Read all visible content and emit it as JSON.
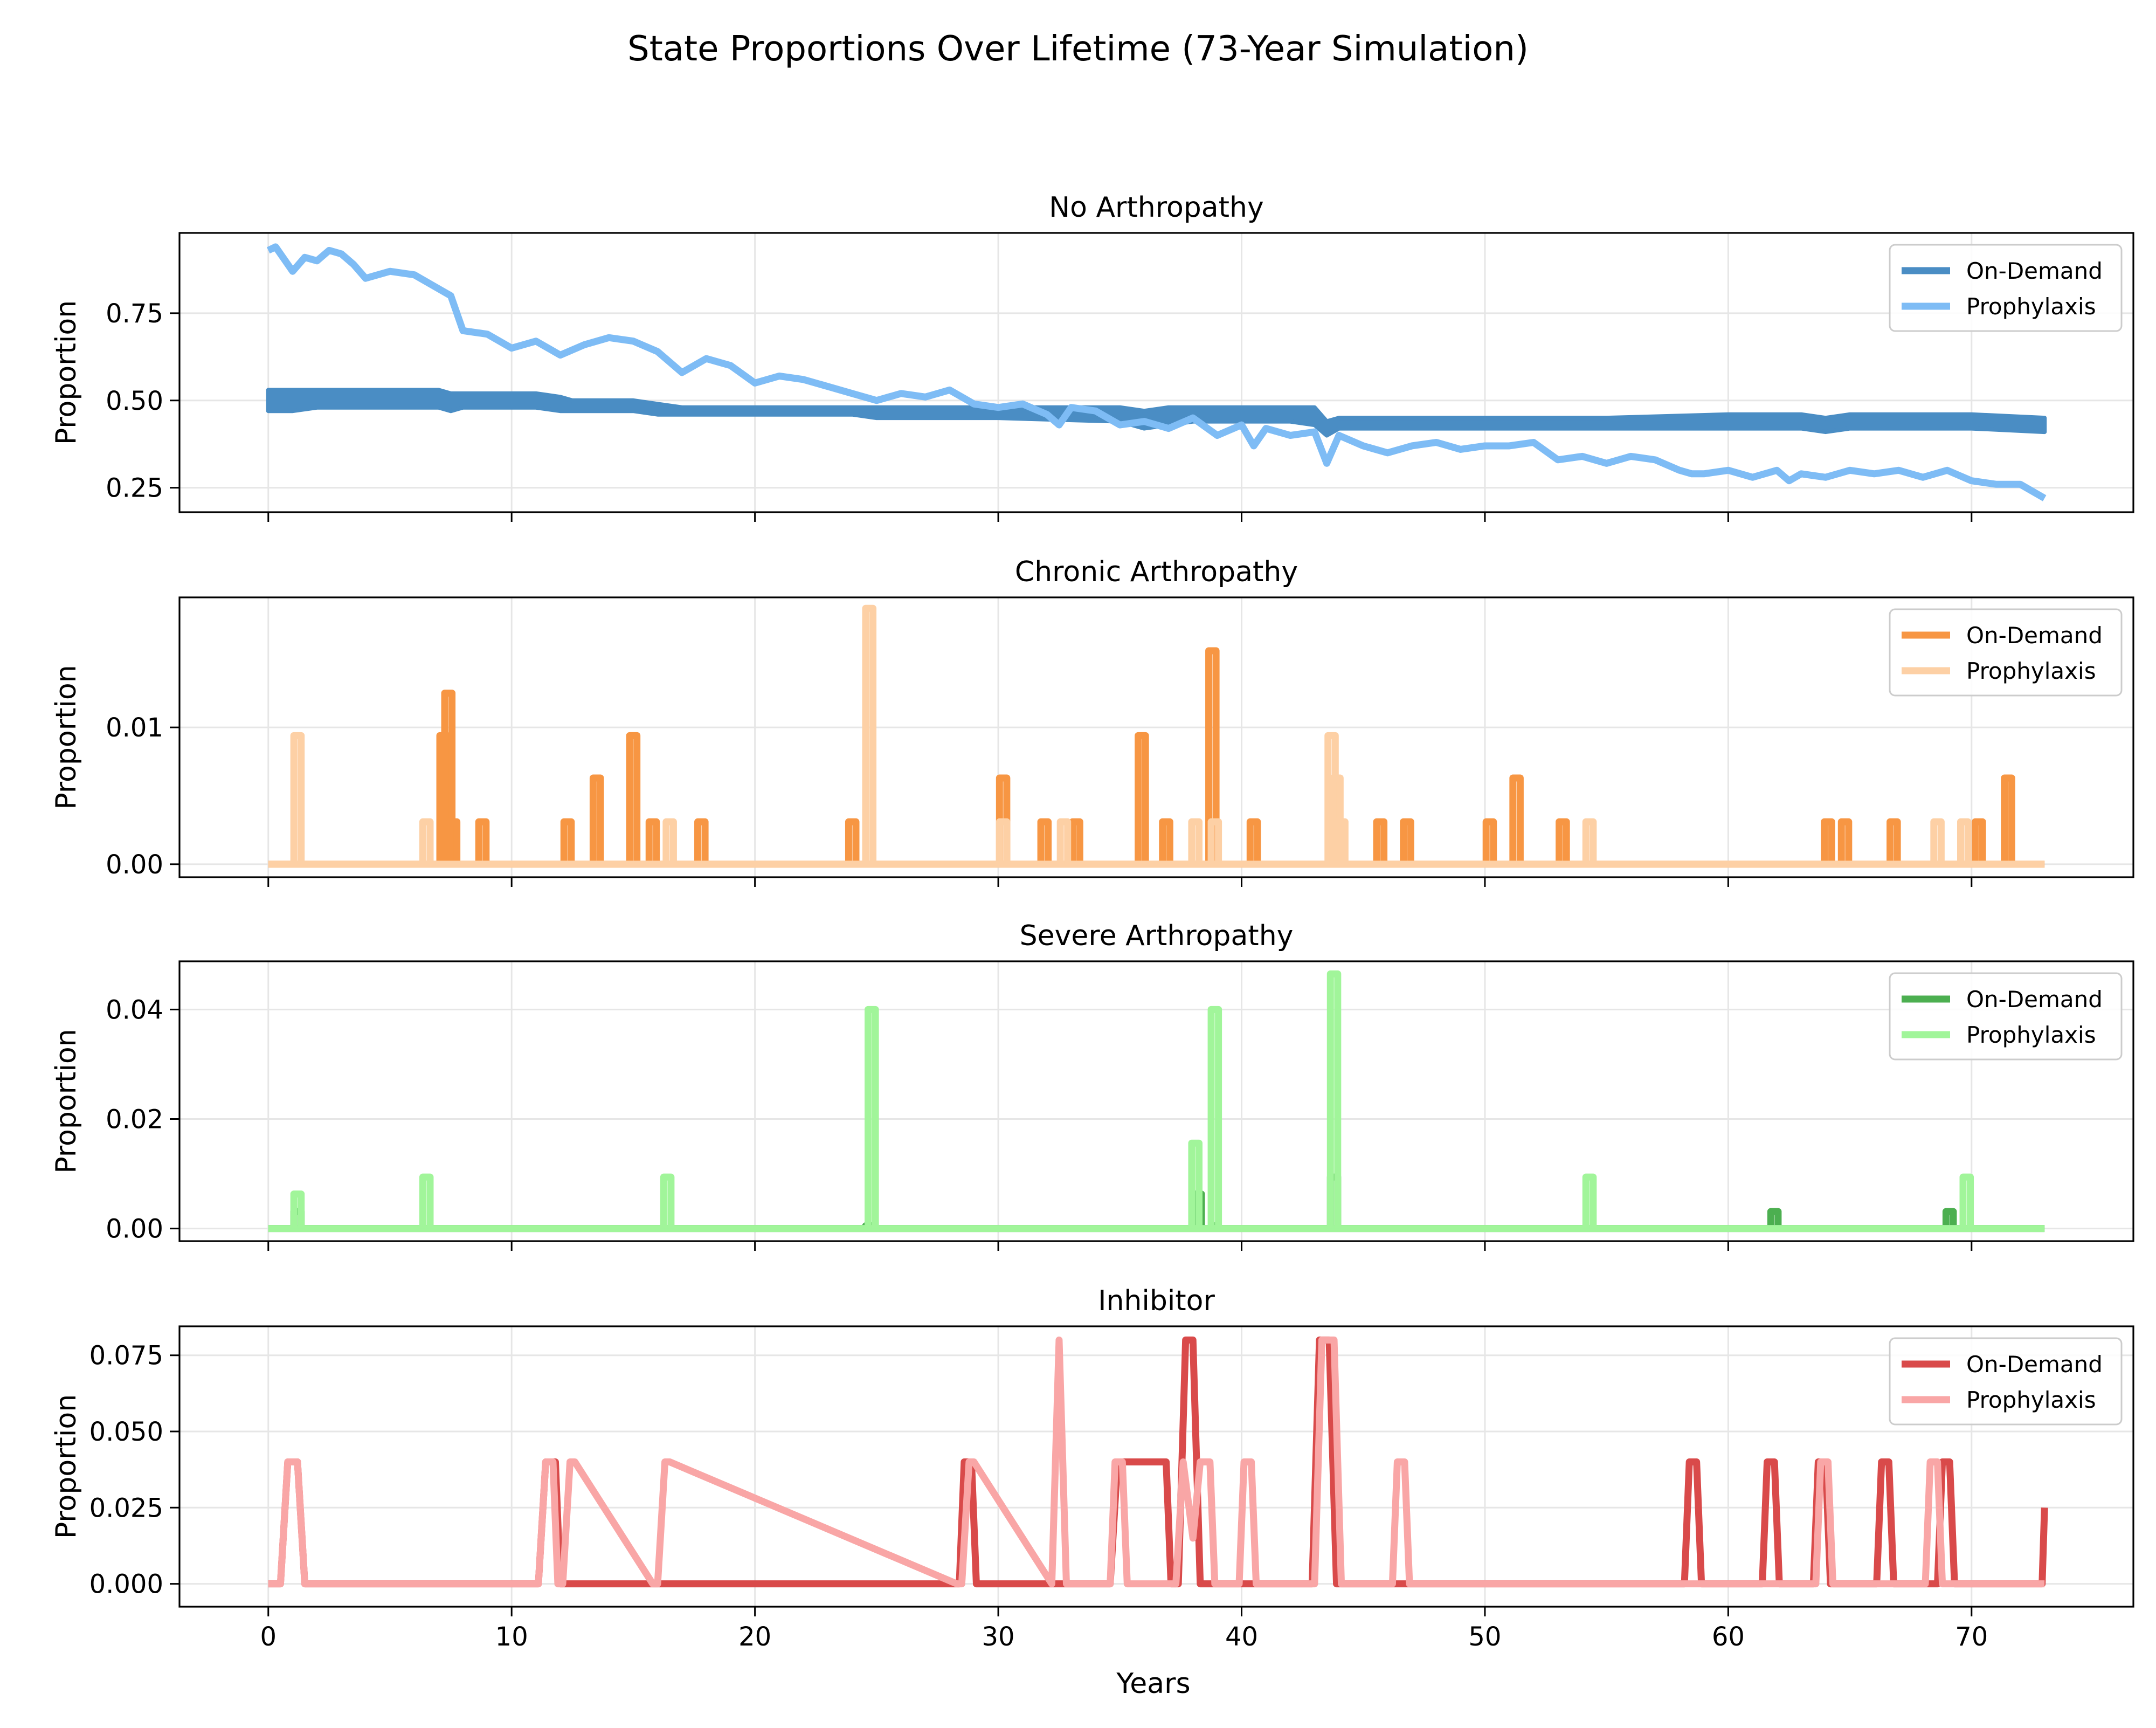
{
  "figure": {
    "title": "State Proportions Over Lifetime (73-Year Simulation)"
  },
  "shared_x": {
    "label": "Years",
    "range": [
      -3.65,
      76.65
    ],
    "ticks": [
      0,
      10,
      20,
      30,
      40,
      50,
      60,
      70
    ],
    "tick_labels": [
      "0",
      "10",
      "20",
      "30",
      "40",
      "50",
      "60",
      "70"
    ]
  },
  "chart_data": [
    {
      "type": "line",
      "title": "No Arthropathy",
      "ylabel": "Proportion",
      "ylim": [
        0.18,
        0.98
      ],
      "yticks": [
        0.25,
        0.5,
        0.75
      ],
      "ytick_labels": [
        "0.25",
        "0.50",
        "0.75"
      ],
      "grid": true,
      "legend": "top-right",
      "series": [
        {
          "name": "On-Demand",
          "color": "#4a8dc4",
          "band": true,
          "x": [
            0,
            1,
            2,
            4,
            6,
            7,
            7.5,
            8,
            11,
            12,
            12.5,
            15,
            16,
            17,
            20,
            24,
            25,
            30,
            35,
            36,
            37,
            38,
            39,
            42,
            43,
            43.5,
            44,
            45,
            46,
            50,
            55,
            60,
            63,
            64,
            65,
            70,
            73
          ],
          "low": [
            0.47,
            0.47,
            0.48,
            0.48,
            0.48,
            0.48,
            0.47,
            0.48,
            0.48,
            0.47,
            0.47,
            0.47,
            0.46,
            0.46,
            0.46,
            0.46,
            0.45,
            0.45,
            0.44,
            0.42,
            0.43,
            0.44,
            0.44,
            0.44,
            0.43,
            0.4,
            0.42,
            0.42,
            0.42,
            0.42,
            0.42,
            0.42,
            0.42,
            0.41,
            0.42,
            0.42,
            0.41
          ],
          "high": [
            0.53,
            0.53,
            0.53,
            0.53,
            0.53,
            0.53,
            0.52,
            0.52,
            0.52,
            0.51,
            0.5,
            0.5,
            0.49,
            0.48,
            0.48,
            0.48,
            0.48,
            0.48,
            0.48,
            0.47,
            0.48,
            0.48,
            0.48,
            0.48,
            0.48,
            0.44,
            0.45,
            0.45,
            0.45,
            0.45,
            0.45,
            0.46,
            0.46,
            0.45,
            0.46,
            0.46,
            0.45
          ]
        },
        {
          "name": "Prophylaxis",
          "color": "#7ebcf5",
          "x": [
            0,
            0.3,
            0.6,
            1,
            1.5,
            2,
            2.5,
            3,
            3.5,
            4,
            5,
            6,
            7,
            7.5,
            8,
            9,
            10,
            11,
            12,
            13,
            14,
            15,
            16,
            17,
            18,
            19,
            20,
            21,
            22,
            23,
            24,
            25,
            26,
            27,
            28,
            29,
            30,
            31,
            32,
            32.5,
            33,
            34,
            35,
            36,
            37,
            38,
            39,
            40,
            40.5,
            41,
            42,
            43,
            43.5,
            44,
            45,
            46,
            47,
            48,
            49,
            50,
            51,
            52,
            53,
            54,
            55,
            56,
            57,
            58,
            58.5,
            59,
            60,
            61,
            62,
            62.5,
            63,
            64,
            65,
            66,
            67,
            68,
            69,
            70,
            71,
            72,
            73
          ],
          "y": [
            0.93,
            0.94,
            0.91,
            0.87,
            0.91,
            0.9,
            0.93,
            0.92,
            0.89,
            0.85,
            0.87,
            0.86,
            0.82,
            0.8,
            0.7,
            0.69,
            0.65,
            0.67,
            0.63,
            0.66,
            0.68,
            0.67,
            0.64,
            0.58,
            0.62,
            0.6,
            0.55,
            0.57,
            0.56,
            0.54,
            0.52,
            0.5,
            0.52,
            0.51,
            0.53,
            0.49,
            0.48,
            0.49,
            0.46,
            0.43,
            0.48,
            0.47,
            0.43,
            0.44,
            0.42,
            0.45,
            0.4,
            0.43,
            0.37,
            0.42,
            0.4,
            0.41,
            0.32,
            0.4,
            0.37,
            0.35,
            0.37,
            0.38,
            0.36,
            0.37,
            0.37,
            0.38,
            0.33,
            0.34,
            0.32,
            0.34,
            0.33,
            0.3,
            0.29,
            0.29,
            0.3,
            0.28,
            0.3,
            0.27,
            0.29,
            0.28,
            0.3,
            0.29,
            0.3,
            0.28,
            0.3,
            0.27,
            0.26,
            0.26,
            0.22
          ]
        }
      ]
    },
    {
      "type": "line",
      "title": "Chronic Arthropathy",
      "ylabel": "Proportion",
      "ylim": [
        -0.00095,
        0.0195
      ],
      "yticks": [
        0.0,
        0.01
      ],
      "ytick_labels": [
        "0.00",
        "0.01"
      ],
      "grid": true,
      "legend": "top-right",
      "series": [
        {
          "name": "On-Demand",
          "color": "#f79643",
          "base": 0,
          "spikes": [
            [
              7.2,
              0.0094
            ],
            [
              7.4,
              0.0125
            ],
            [
              7.6,
              0.0031
            ],
            [
              8.8,
              0.0031
            ],
            [
              12.3,
              0.0031
            ],
            [
              13.5,
              0.0063
            ],
            [
              15,
              0.0094
            ],
            [
              15.8,
              0.0031
            ],
            [
              17.8,
              0.0031
            ],
            [
              24,
              0.0031
            ],
            [
              30.2,
              0.0063
            ],
            [
              31.9,
              0.0031
            ],
            [
              33.2,
              0.0031
            ],
            [
              35.9,
              0.0094
            ],
            [
              36.9,
              0.0031
            ],
            [
              38.8,
              0.0156
            ],
            [
              40.5,
              0.0031
            ],
            [
              45.7,
              0.0031
            ],
            [
              46.8,
              0.0031
            ],
            [
              50.2,
              0.0031
            ],
            [
              51.3,
              0.0063
            ],
            [
              53.2,
              0.0031
            ],
            [
              64.1,
              0.0031
            ],
            [
              64.8,
              0.0031
            ],
            [
              66.8,
              0.0031
            ],
            [
              70.3,
              0.0031
            ],
            [
              71.5,
              0.0063
            ]
          ]
        },
        {
          "name": "Prophylaxis",
          "color": "#fdd0a5",
          "base": 0,
          "spikes": [
            [
              1.2,
              0.0094
            ],
            [
              6.5,
              0.0031
            ],
            [
              16.5,
              0.0031
            ],
            [
              24.7,
              0.0187
            ],
            [
              30.2,
              0.0031
            ],
            [
              32.7,
              0.0031
            ],
            [
              38.1,
              0.0031
            ],
            [
              38.9,
              0.0031
            ],
            [
              43.7,
              0.0094
            ],
            [
              43.9,
              0.0063
            ],
            [
              44.1,
              0.0031
            ],
            [
              54.3,
              0.0031
            ],
            [
              68.6,
              0.0031
            ],
            [
              69.7,
              0.0031
            ]
          ]
        }
      ]
    },
    {
      "type": "line",
      "title": "Severe Arthropathy",
      "ylabel": "Proportion",
      "ylim": [
        -0.0023,
        0.0488
      ],
      "yticks": [
        0.0,
        0.02,
        0.04
      ],
      "ytick_labels": [
        "0.00",
        "0.02",
        "0.04"
      ],
      "grid": true,
      "legend": "top-right",
      "series": [
        {
          "name": "On-Demand",
          "color": "#4caf50",
          "base": 0,
          "spikes": [
            [
              1.2,
              0.0031
            ],
            [
              24.7,
              0.0005
            ],
            [
              38.2,
              0.0063
            ],
            [
              38.9,
              0.0005
            ],
            [
              43.8,
              0.0094
            ],
            [
              61.9,
              0.0031
            ],
            [
              69.1,
              0.0031
            ]
          ]
        },
        {
          "name": "Prophylaxis",
          "color": "#a1f59a",
          "base": 0,
          "spikes": [
            [
              1.2,
              0.0063
            ],
            [
              6.5,
              0.0094
            ],
            [
              16.4,
              0.0094
            ],
            [
              24.8,
              0.04
            ],
            [
              38.1,
              0.0156
            ],
            [
              38.9,
              0.04
            ],
            [
              43.8,
              0.0465
            ],
            [
              54.3,
              0.0094
            ],
            [
              69.8,
              0.0094
            ]
          ]
        }
      ]
    },
    {
      "type": "line",
      "title": "Inhibitor",
      "ylabel": "Proportion",
      "ylim": [
        -0.0075,
        0.0845
      ],
      "yticks": [
        0.0,
        0.025,
        0.05,
        0.075
      ],
      "ytick_labels": [
        "0.000",
        "0.025",
        "0.050",
        "0.075"
      ],
      "grid": true,
      "legend": "top-right",
      "series": [
        {
          "name": "On-Demand",
          "color": "#d94a4a",
          "x": [
            0,
            0.5,
            0.8,
            1.2,
            1.5,
            11.1,
            11.4,
            11.8,
            12.0,
            28.4,
            28.6,
            28.9,
            29.1,
            34.6,
            34.9,
            36.9,
            37.1,
            37.4,
            37.7,
            38.0,
            38.3,
            42.9,
            43.2,
            43.6,
            43.9,
            58.2,
            58.4,
            58.7,
            58.9,
            61.4,
            61.6,
            61.9,
            62.1,
            63.5,
            63.7,
            64.0,
            64.2,
            66.1,
            66.3,
            66.6,
            66.8,
            68.6,
            68.8,
            69.1,
            69.3,
            72.9,
            73.0
          ],
          "y": [
            0,
            0,
            0.04,
            0.04,
            0,
            0,
            0.04,
            0.04,
            0,
            0,
            0.04,
            0.04,
            0,
            0,
            0.04,
            0.04,
            0,
            0,
            0.08,
            0.08,
            0,
            0,
            0.08,
            0.08,
            0,
            0,
            0.04,
            0.04,
            0,
            0,
            0.04,
            0.04,
            0,
            0,
            0.04,
            0.04,
            0,
            0,
            0.04,
            0.04,
            0,
            0,
            0.04,
            0.04,
            0,
            0,
            0.025
          ]
        },
        {
          "name": "Prophylaxis",
          "color": "#f9a6a6",
          "x": [
            0,
            0.5,
            0.8,
            1.2,
            1.5,
            11.1,
            11.4,
            11.7,
            11.9,
            12.1,
            12.4,
            12.6,
            15.8,
            16.0,
            16.3,
            16.5,
            28.3,
            28.5,
            28.8,
            29.0,
            32.2,
            32.5,
            32.8,
            34.6,
            34.8,
            35.1,
            35.3,
            37.3,
            37.6,
            38.0,
            38.3,
            38.7,
            38.9,
            39.9,
            40.1,
            40.4,
            40.6,
            43.0,
            43.3,
            43.8,
            44.1,
            46.2,
            46.4,
            46.7,
            46.9,
            63.6,
            63.8,
            64.1,
            64.3,
            68.1,
            68.3,
            68.6,
            68.8,
            73.0
          ],
          "y": [
            0,
            0,
            0.04,
            0.04,
            0,
            0,
            0.04,
            0.04,
            0,
            0,
            0.04,
            0.04,
            0,
            0,
            0.04,
            0.04,
            0,
            0,
            0.04,
            0.04,
            0,
            0.08,
            0,
            0,
            0.04,
            0.04,
            0,
            0,
            0.04,
            0.015,
            0.04,
            0.04,
            0,
            0,
            0.04,
            0.04,
            0,
            0,
            0.08,
            0.08,
            0,
            0,
            0.04,
            0.04,
            0,
            0,
            0.04,
            0.04,
            0,
            0,
            0.04,
            0.04,
            0,
            0
          ]
        }
      ]
    }
  ]
}
